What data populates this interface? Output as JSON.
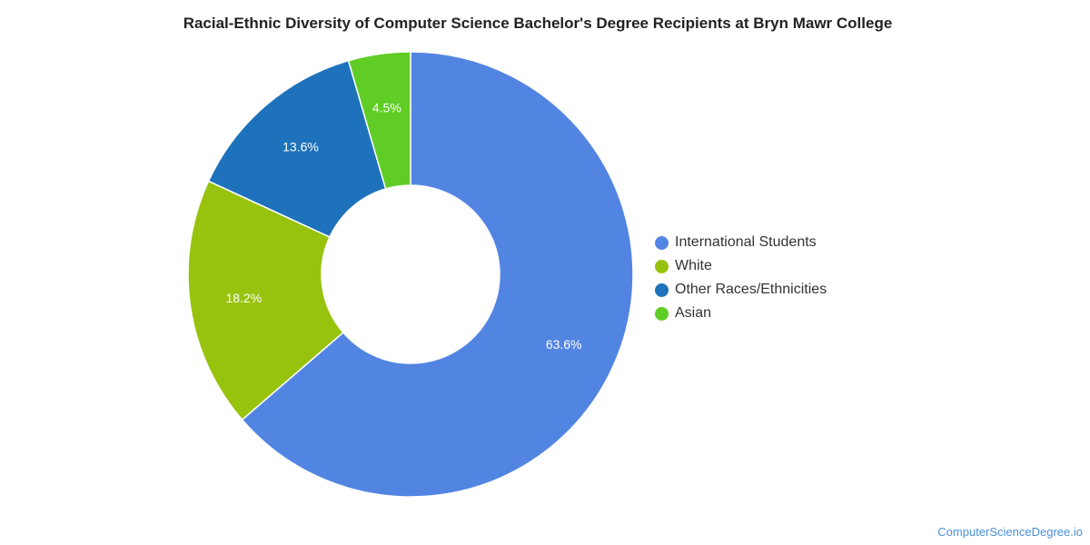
{
  "chart_data": {
    "type": "pie",
    "title": "Racial-Ethnic Diversity of Computer Science Bachelor's Degree Recipients at Bryn Mawr College",
    "slices": [
      {
        "label": "International Students",
        "value": 63.6,
        "display": "63.6%",
        "color": "#5285e2"
      },
      {
        "label": "White",
        "value": 18.2,
        "display": "18.2%",
        "color": "#97c30e"
      },
      {
        "label": "Other Races/Ethnicities",
        "value": 13.6,
        "display": "13.6%",
        "color": "#1e72bc"
      },
      {
        "label": "Asian",
        "value": 4.5,
        "display": "4.5%",
        "color": "#5fcd25"
      }
    ],
    "donut": true,
    "legend_position": "right"
  },
  "watermark": "ComputerScienceDegree.io"
}
